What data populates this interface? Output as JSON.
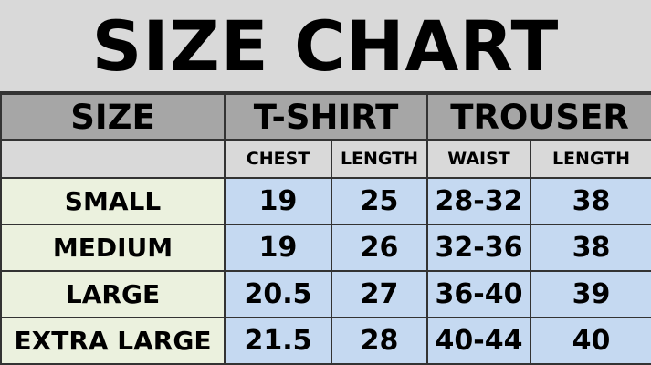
{
  "title": "SIZE CHART",
  "headers": {
    "size": "SIZE",
    "tshirt": "T-SHIRT",
    "trouser": "TROUSER"
  },
  "subheaders": [
    "CHEST",
    "LENGTH",
    "WAIST",
    "LENGTH"
  ],
  "rows": [
    {
      "size": "SMALL",
      "values": [
        "19",
        "25",
        "28-32",
        "38"
      ]
    },
    {
      "size": "MEDIUM",
      "values": [
        "19",
        "26",
        "32-36",
        "38"
      ]
    },
    {
      "size": "LARGE",
      "values": [
        "20.5",
        "27",
        "36-40",
        "39"
      ]
    },
    {
      "size": "EXTRA LARGE",
      "values": [
        "21.5",
        "28",
        "40-44",
        "40"
      ]
    }
  ],
  "colors": {
    "header": "#a6a6a6",
    "subheader": "#d9d9d9",
    "size_cell": "#ebf1de",
    "value_cell": "#c5d9f1"
  }
}
